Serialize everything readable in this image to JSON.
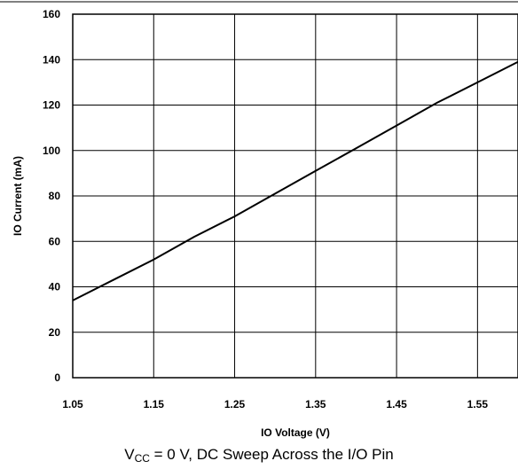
{
  "chart_data": {
    "type": "line",
    "xlabel": "IO Voltage (V)",
    "ylabel": "IO Current (mA)",
    "xlim": [
      1.05,
      1.6
    ],
    "ylim": [
      0,
      160
    ],
    "x_ticks": [
      "1.05",
      "1.15",
      "1.25",
      "1.35",
      "1.45",
      "1.55"
    ],
    "y_ticks": [
      "0",
      "20",
      "40",
      "60",
      "80",
      "100",
      "120",
      "140",
      "160"
    ],
    "grid": true,
    "series": [
      {
        "x": [
          1.05,
          1.1,
          1.15,
          1.2,
          1.25,
          1.3,
          1.35,
          1.4,
          1.45,
          1.5,
          1.55,
          1.6
        ],
        "y": [
          34,
          43,
          52,
          62,
          71,
          81,
          91,
          101,
          111,
          121,
          130,
          139
        ]
      }
    ]
  },
  "caption": {
    "prefix": "V",
    "subscript": "CC",
    "rest": " = 0 V, DC Sweep Across the I/O Pin"
  }
}
